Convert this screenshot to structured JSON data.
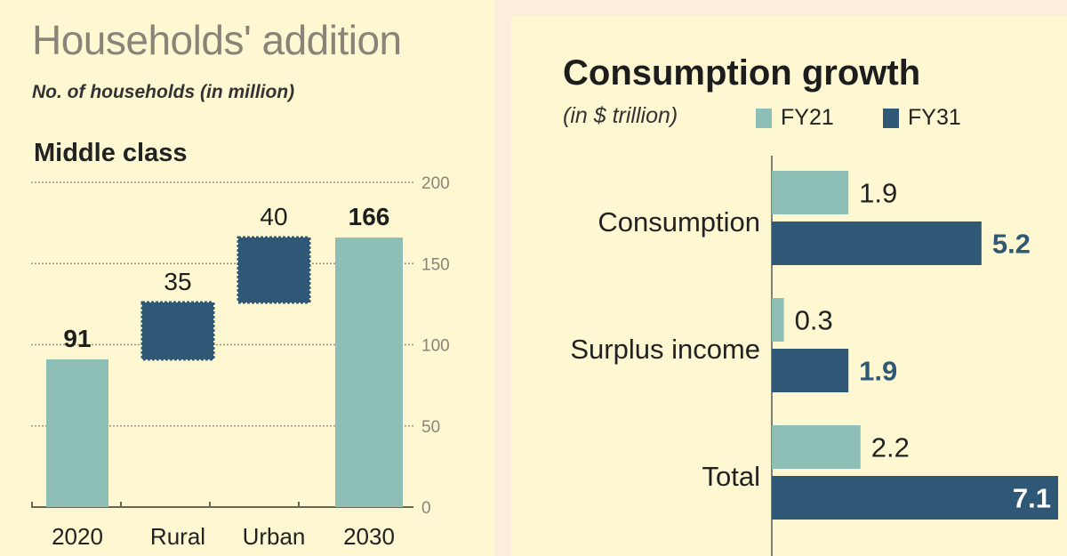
{
  "colors": {
    "light": "#8dbfb6",
    "dark": "#2f5877",
    "text": "#222222",
    "axis": "#8a8478"
  },
  "chart_data": [
    {
      "type": "bar",
      "subtype": "waterfall",
      "title": "Households' addition",
      "subtitle": "No. of households (in million)",
      "section": "Middle class",
      "categories": [
        "2020",
        "Rural",
        "Urban",
        "2030"
      ],
      "values": [
        91,
        35,
        40,
        166
      ],
      "labels": [
        "91",
        "35",
        "40",
        "166"
      ],
      "ylim": [
        0,
        200
      ],
      "yticks": [
        "0",
        "50",
        "100",
        "150",
        "200"
      ],
      "grid": true
    },
    {
      "type": "bar",
      "orientation": "horizontal",
      "title": "Consumption growth",
      "subtitle": "(in $ trillion)",
      "categories": [
        "Consumption",
        "Surplus income",
        "Total"
      ],
      "series": [
        {
          "name": "FY21",
          "values": [
            1.9,
            0.3,
            2.2
          ],
          "labels": [
            "1.9",
            "0.3",
            "2.2"
          ]
        },
        {
          "name": "FY31",
          "values": [
            5.2,
            1.9,
            7.1
          ],
          "labels": [
            "5.2",
            "1.9",
            "7.1"
          ]
        }
      ],
      "xlim": [
        0,
        7.1
      ],
      "legend": "top"
    }
  ]
}
